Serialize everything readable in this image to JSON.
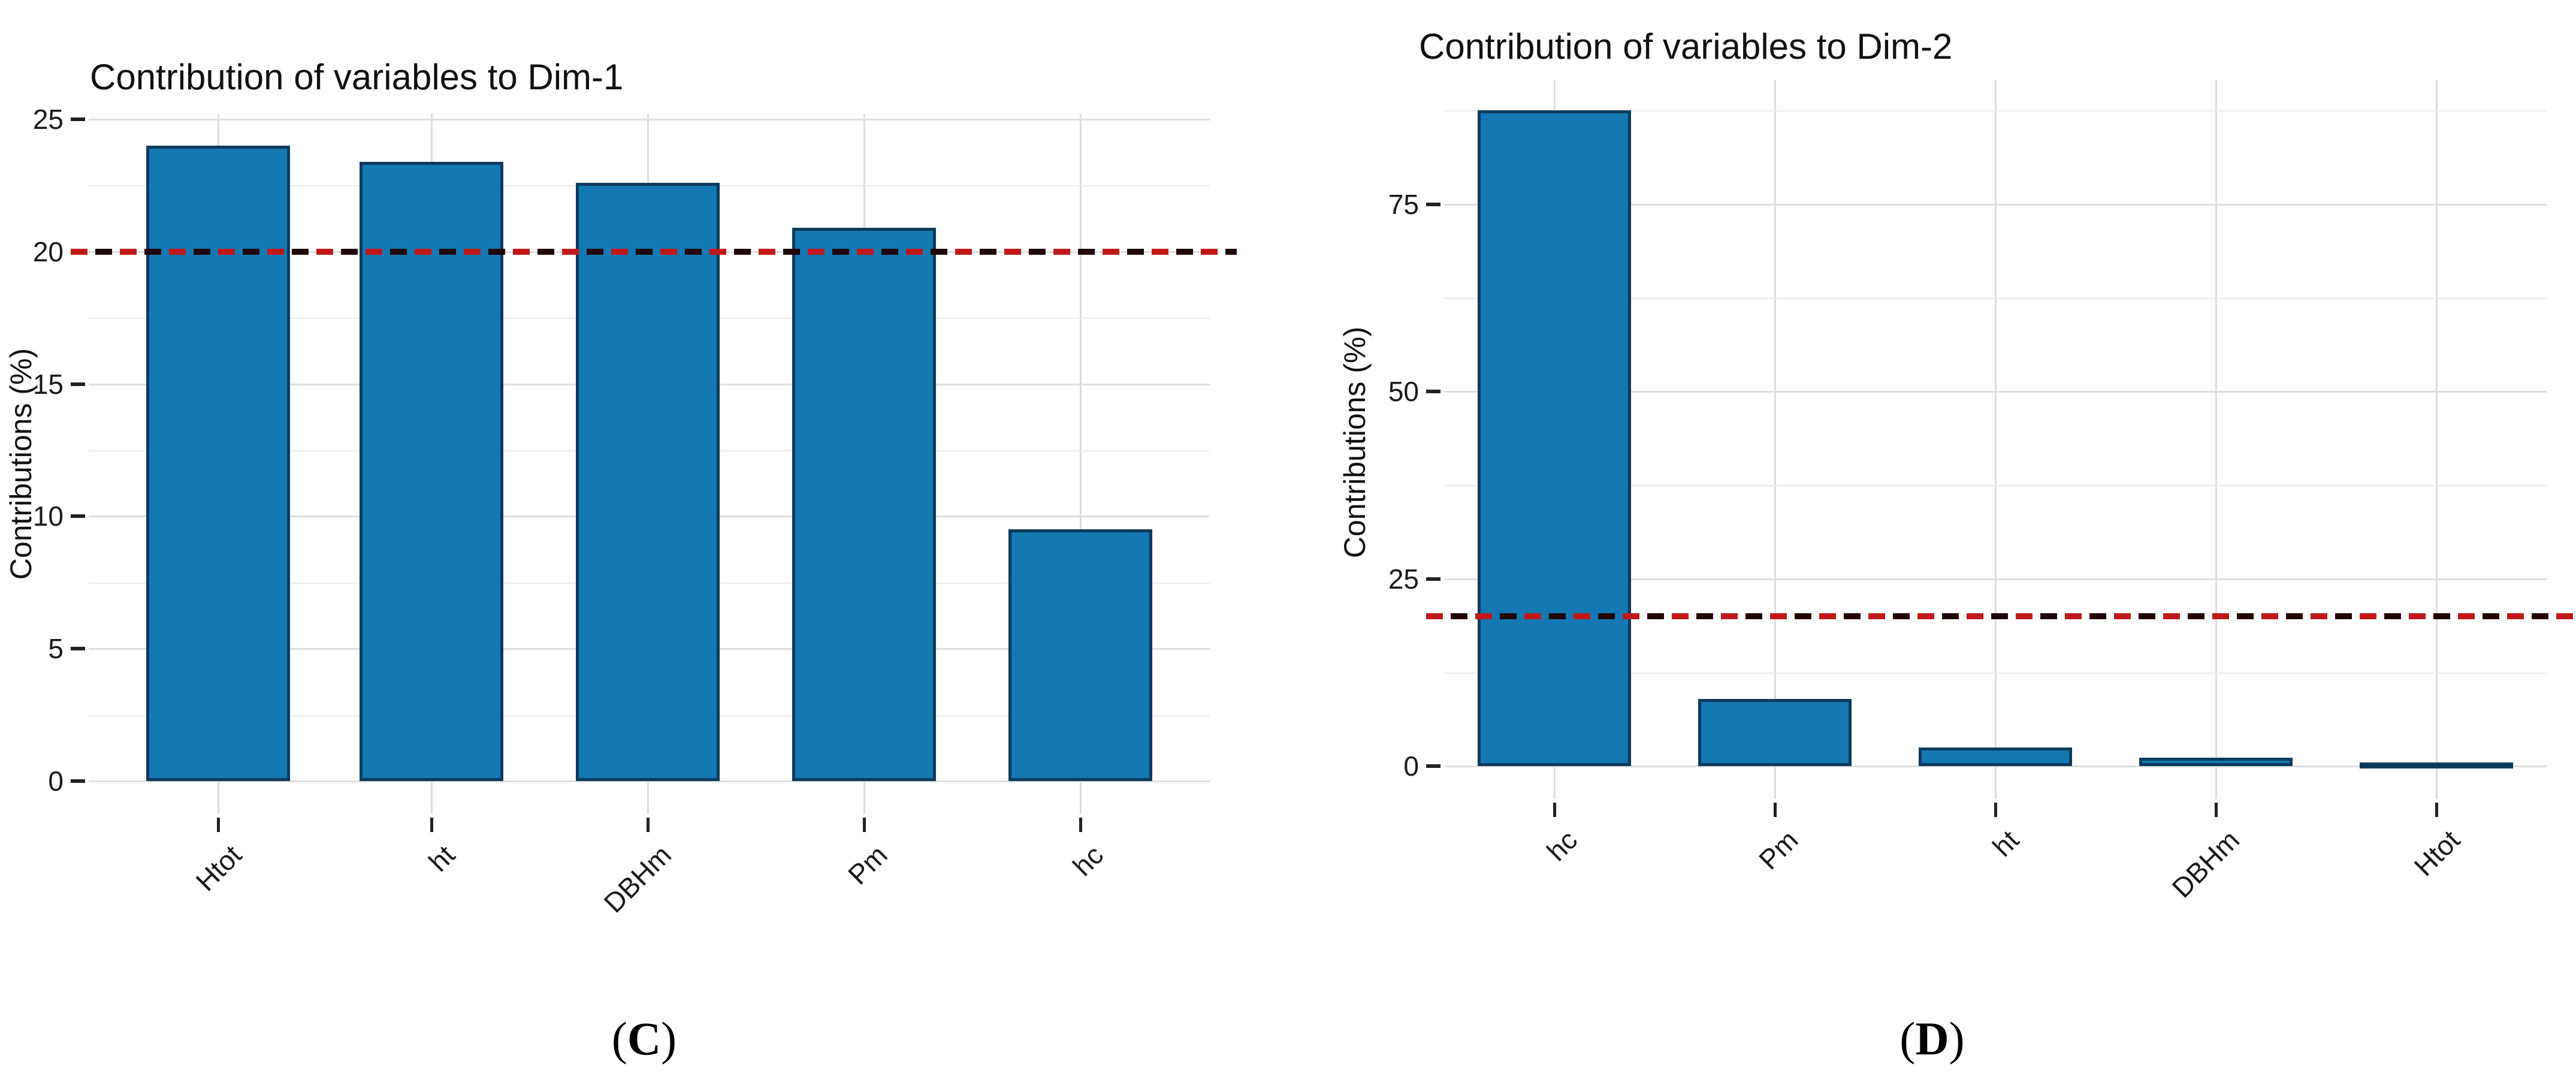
{
  "page": {
    "background": "#ffffff"
  },
  "colors": {
    "bar_fill": "#1478b2",
    "bar_border": "#0e3a5c",
    "ref_line_red": "#c01818",
    "ref_line_dark": "#200606",
    "grid_major": "#dedede",
    "grid_minor": "#ececec",
    "axis_text": "#1a1a1a"
  },
  "chart_data": [
    {
      "type": "bar",
      "title": "Contribution of variables to Dim-1",
      "ylabel": "Contributions (%)",
      "xlabel": "",
      "categories": [
        "Htot",
        "ht",
        "DBHm",
        "Pm",
        "hc"
      ],
      "values": [
        24.0,
        23.4,
        22.6,
        20.9,
        9.5
      ],
      "yticks": [
        0,
        5,
        10,
        15,
        20,
        25
      ],
      "ylim": [
        0,
        25.3
      ],
      "ref_line": 20,
      "grid": true,
      "legend": "none",
      "caption": "(C)",
      "caption_parts": [
        "(",
        "C",
        ")"
      ]
    },
    {
      "type": "bar",
      "title": "Contribution of variables to Dim-2",
      "ylabel": "Contributions (%)",
      "xlabel": "",
      "categories": [
        "hc",
        "Pm",
        "ht",
        "DBHm",
        "Htot"
      ],
      "values": [
        87.5,
        9.0,
        2.5,
        1.1,
        0.5
      ],
      "yticks": [
        0,
        25,
        50,
        75
      ],
      "ylim": [
        0,
        91.9
      ],
      "ref_line": 20,
      "grid": true,
      "legend": "none",
      "caption": "(D)",
      "caption_parts": [
        "(",
        "D",
        ")"
      ]
    }
  ]
}
